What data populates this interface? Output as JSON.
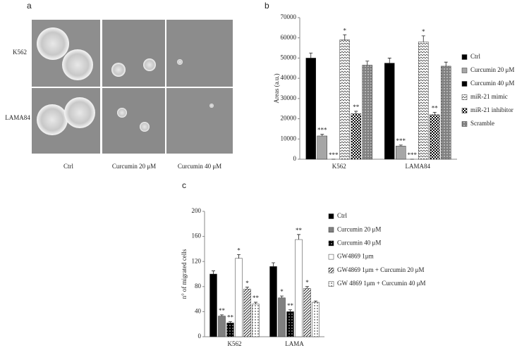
{
  "panel_a": {
    "label": "a",
    "rows": [
      "K562",
      "LAMA84"
    ],
    "columns": [
      "Ctrl",
      "Curcumin 20 μM",
      "Curcumin 40 μM"
    ]
  },
  "chart_data": [
    {
      "type": "bar",
      "label": "b",
      "y_label": "Areas (a.u.)",
      "categories": [
        "K562",
        "LAMA84"
      ],
      "ylim": [
        0,
        70000
      ],
      "yticks": [
        0,
        10000,
        20000,
        30000,
        40000,
        50000,
        60000,
        70000
      ],
      "series": [
        {
          "name": "Ctrl",
          "color": "#000000",
          "pattern": null,
          "values": [
            50000,
            47500
          ],
          "errors": [
            2500,
            2500
          ],
          "significance": [
            null,
            null
          ]
        },
        {
          "name": "Curcumin 20 μM",
          "color": "#a6a6a6",
          "pattern": null,
          "values": [
            11500,
            6500
          ],
          "errors": [
            800,
            500
          ],
          "significance": [
            "***",
            "***"
          ]
        },
        {
          "name": "Curcumin 40 μM",
          "color": "#000000",
          "pattern": null,
          "values": [
            0,
            0
          ],
          "errors": [
            0,
            0
          ],
          "significance": [
            "***",
            "***"
          ]
        },
        {
          "name": "miR-21 mimic",
          "color": "#ffffff",
          "pattern": "waves",
          "values": [
            59000,
            58000
          ],
          "errors": [
            2500,
            3000
          ],
          "significance": [
            "*",
            "*"
          ]
        },
        {
          "name": "miR-21  inhibitor",
          "color": "#000000",
          "pattern": "checker",
          "values": [
            22500,
            22000
          ],
          "errors": [
            1200,
            1200
          ],
          "significance": [
            "**",
            "**"
          ]
        },
        {
          "name": "Scramble",
          "color": "#808080",
          "pattern": "dots",
          "values": [
            46500,
            46000
          ],
          "errors": [
            2000,
            2000
          ],
          "significance": [
            null,
            null
          ]
        }
      ]
    },
    {
      "type": "bar",
      "label": "c",
      "y_label": "n° of migrated cells",
      "categories": [
        "K562",
        "LAMA"
      ],
      "ylim": [
        0,
        200
      ],
      "yticks": [
        0,
        40,
        80,
        120,
        160,
        200
      ],
      "series": [
        {
          "name": "Ctrl",
          "color": "#000000",
          "pattern": null,
          "values": [
            100,
            112
          ],
          "errors": [
            5,
            6
          ],
          "significance": [
            null,
            null
          ]
        },
        {
          "name": "Curcumin 20 μM",
          "color": "#808080",
          "pattern": null,
          "values": [
            33,
            62
          ],
          "errors": [
            2,
            3
          ],
          "significance": [
            "**",
            "*"
          ]
        },
        {
          "name": "Curcumin 40 μM",
          "color": "#000000",
          "pattern": "dots",
          "values": [
            22,
            40
          ],
          "errors": [
            2,
            3
          ],
          "significance": [
            "**",
            "**"
          ]
        },
        {
          "name": "GW4869  1μm",
          "color": "#ffffff",
          "pattern": null,
          "values": [
            125,
            155
          ],
          "errors": [
            6,
            8
          ],
          "significance": [
            "*",
            "**"
          ]
        },
        {
          "name": "GW4869  1μm + Curcumin 20 μM",
          "color": "#ffffff",
          "pattern": "hatch",
          "values": [
            76,
            77
          ],
          "errors": [
            3,
            3
          ],
          "significance": [
            "*",
            "*"
          ]
        },
        {
          "name": "GW 4869 1μm + Curcumin 40 μM",
          "color": "#ffffff",
          "pattern": "dots",
          "values": [
            52,
            55
          ],
          "errors": [
            3,
            2
          ],
          "significance": [
            "**",
            null
          ]
        }
      ]
    }
  ]
}
